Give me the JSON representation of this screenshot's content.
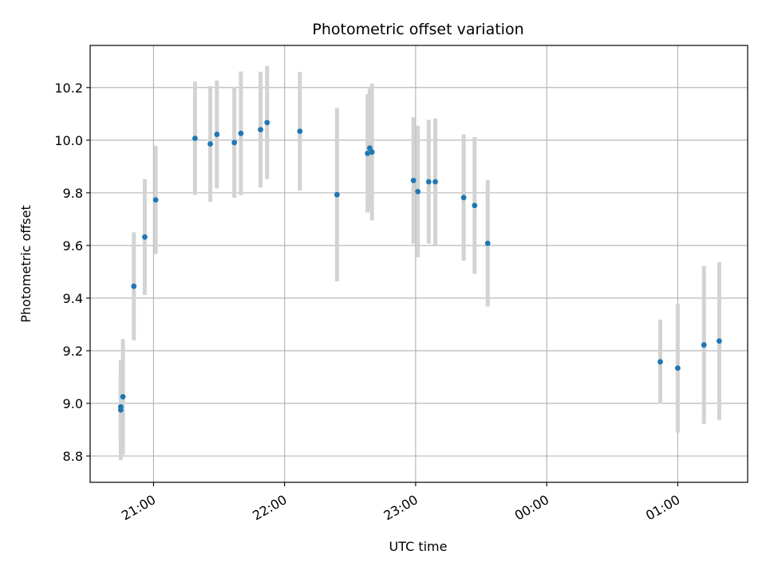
{
  "chart_data": {
    "type": "scatter",
    "title": "Photometric offset variation",
    "xlabel": "UTC time",
    "ylabel": "Photometric offset",
    "grid": true,
    "x_unit": "UTC time (HH:MM)",
    "xlim": [
      "20:31",
      "01:32"
    ],
    "ylim": [
      8.7,
      10.36
    ],
    "x_ticks": [
      "21:00",
      "22:00",
      "23:00",
      "00:00",
      "01:00"
    ],
    "y_ticks": [
      "8.8",
      "9.0",
      "9.2",
      "9.4",
      "9.6",
      "9.8",
      "10.0",
      "10.2"
    ],
    "marker_color": "#1f77b4",
    "errorbar_color": "#d3d3d3",
    "series": [
      {
        "points": [
          {
            "x": "20:45",
            "y": 8.987,
            "err": 0.13
          },
          {
            "x": "20:45",
            "y": 8.975,
            "err": 0.19
          },
          {
            "x": "20:46",
            "y": 9.025,
            "err": 0.22
          },
          {
            "x": "20:51",
            "y": 9.445,
            "err": 0.205
          },
          {
            "x": "20:56",
            "y": 9.632,
            "err": 0.22
          },
          {
            "x": "21:01",
            "y": 9.773,
            "err": 0.205
          },
          {
            "x": "21:19",
            "y": 10.007,
            "err": 0.215
          },
          {
            "x": "21:26",
            "y": 9.986,
            "err": 0.22
          },
          {
            "x": "21:29",
            "y": 10.022,
            "err": 0.205
          },
          {
            "x": "21:37",
            "y": 9.991,
            "err": 0.21
          },
          {
            "x": "21:40",
            "y": 10.026,
            "err": 0.235
          },
          {
            "x": "21:49",
            "y": 10.04,
            "err": 0.22
          },
          {
            "x": "21:52",
            "y": 10.067,
            "err": 0.215
          },
          {
            "x": "22:07",
            "y": 10.034,
            "err": 0.225
          },
          {
            "x": "22:24",
            "y": 9.793,
            "err": 0.33
          },
          {
            "x": "22:38",
            "y": 9.95,
            "err": 0.225
          },
          {
            "x": "22:39",
            "y": 9.97,
            "err": 0.23
          },
          {
            "x": "22:40",
            "y": 9.955,
            "err": 0.26
          },
          {
            "x": "22:59",
            "y": 9.847,
            "err": 0.24
          },
          {
            "x": "23:01",
            "y": 9.805,
            "err": 0.25
          },
          {
            "x": "23:06",
            "y": 9.842,
            "err": 0.235
          },
          {
            "x": "23:09",
            "y": 9.842,
            "err": 0.24
          },
          {
            "x": "23:22",
            "y": 9.782,
            "err": 0.24
          },
          {
            "x": "23:27",
            "y": 9.752,
            "err": 0.26
          },
          {
            "x": "23:33",
            "y": 9.608,
            "err": 0.24
          },
          {
            "x": "00:52",
            "y": 9.158,
            "err": 0.16
          },
          {
            "x": "01:00",
            "y": 9.134,
            "err": 0.245
          },
          {
            "x": "01:12",
            "y": 9.222,
            "err": 0.3
          },
          {
            "x": "01:19",
            "y": 9.237,
            "err": 0.3
          }
        ]
      }
    ]
  }
}
